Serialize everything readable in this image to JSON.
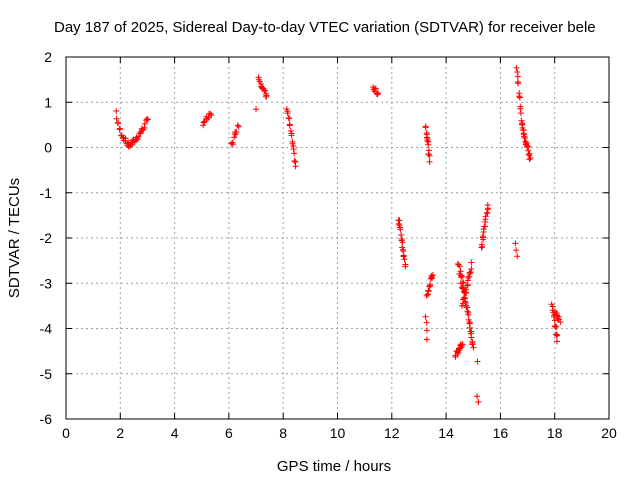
{
  "chart_data": {
    "type": "scatter",
    "title": "Day 187 of 2025, Sidereal Day-to-day VTEC variation (SDTVAR) for receiver bele",
    "xlabel": "GPS time / hours",
    "ylabel": "SDTVAR / TECUs",
    "xlim": [
      0,
      20
    ],
    "ylim": [
      -6,
      2
    ],
    "xticks": [
      0,
      2,
      4,
      6,
      8,
      10,
      12,
      14,
      16,
      18,
      20
    ],
    "yticks": [
      -6,
      -5,
      -4,
      -3,
      -2,
      -1,
      0,
      1,
      2
    ],
    "xtick_labels": [
      "0",
      "2",
      "4",
      "6",
      "8",
      "10",
      "12",
      "14",
      "16",
      "18",
      "20"
    ],
    "ytick_labels": [
      "-6",
      "-5",
      "-4",
      "-3",
      "-2",
      "-1",
      "0",
      "1",
      "2"
    ],
    "grid": true,
    "marker": "+",
    "color": "#ff0000",
    "series": [
      {
        "name": "SDTVAR",
        "segments": [
          {
            "x": [
              1.85,
              3.0
            ],
            "y": [
              0.8,
              0.6
            ],
            "shape": "valley",
            "vmin": 0.05,
            "xmin": 2.3,
            "n": 40
          },
          {
            "x": [
              5.05,
              5.35
            ],
            "y": [
              0.55,
              0.72
            ],
            "n": 10
          },
          {
            "x": [
              6.1,
              6.35
            ],
            "y": [
              0.05,
              0.5
            ],
            "n": 10
          },
          {
            "x": [
              7.0,
              7.05
            ],
            "y": [
              0.9,
              0.9
            ],
            "n": 1
          },
          {
            "x": [
              7.1,
              7.4
            ],
            "y": [
              1.55,
              1.1
            ],
            "n": 14
          },
          {
            "x": [
              8.15,
              8.45
            ],
            "y": [
              0.9,
              -0.4
            ],
            "n": 18
          },
          {
            "x": [
              11.3,
              11.5
            ],
            "y": [
              1.3,
              1.2
            ],
            "n": 8
          },
          {
            "x": [
              12.25,
              12.5
            ],
            "y": [
              -1.55,
              -2.6
            ],
            "n": 18
          },
          {
            "x": [
              13.25,
              13.4
            ],
            "y": [
              0.5,
              -0.3
            ],
            "n": 14
          },
          {
            "x": [
              13.25,
              13.3
            ],
            "y": [
              -3.7,
              -4.25
            ],
            "n": 4
          },
          {
            "x": [
              13.3,
              13.5
            ],
            "y": [
              -3.3,
              -2.8
            ],
            "n": 14
          },
          {
            "x": [
              14.35,
              14.6
            ],
            "y": [
              -4.6,
              -4.3
            ],
            "n": 14
          },
          {
            "x": [
              14.45,
              14.6
            ],
            "y": [
              -2.55,
              -3.1
            ],
            "n": 10
          },
          {
            "x": [
              14.6,
              15.0
            ],
            "y": [
              -2.9,
              -4.4
            ],
            "n": 30
          },
          {
            "x": [
              14.6,
              14.95
            ],
            "y": [
              -3.5,
              -2.6
            ],
            "n": 18
          },
          {
            "x": [
              15.15,
              15.2
            ],
            "y": [
              -4.7,
              -4.7
            ],
            "n": 1
          },
          {
            "x": [
              15.15,
              15.2
            ],
            "y": [
              -5.55,
              -5.65
            ],
            "n": 2
          },
          {
            "x": [
              15.3,
              15.55
            ],
            "y": [
              -2.2,
              -1.25
            ],
            "n": 18
          },
          {
            "x": [
              16.55,
              16.6
            ],
            "y": [
              -2.15,
              -2.45
            ],
            "n": 3
          },
          {
            "x": [
              16.6,
              16.8
            ],
            "y": [
              1.8,
              0.4
            ],
            "n": 14
          },
          {
            "x": [
              16.8,
              17.1
            ],
            "y": [
              0.5,
              -0.25
            ],
            "n": 22
          },
          {
            "x": [
              17.9,
              18.1
            ],
            "y": [
              -3.5,
              -4.25
            ],
            "n": 14
          },
          {
            "x": [
              18.0,
              18.2
            ],
            "y": [
              -3.65,
              -3.8
            ],
            "n": 8
          }
        ]
      }
    ]
  }
}
